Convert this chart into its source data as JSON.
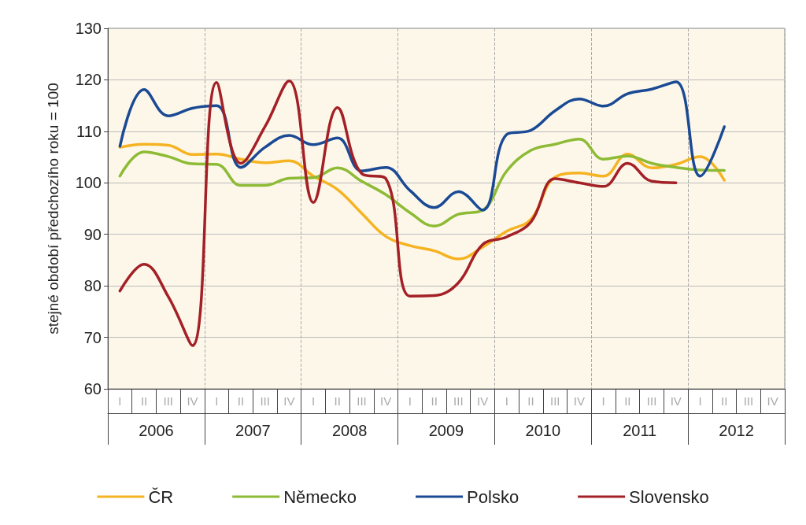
{
  "chart_data": {
    "type": "line",
    "ylabel": "stejné období předchozího roku = 100",
    "categories": [
      "I",
      "II",
      "III",
      "IV",
      "I",
      "II",
      "III",
      "IV",
      "I",
      "II",
      "III",
      "IV",
      "I",
      "II",
      "III",
      "IV",
      "I",
      "II",
      "III",
      "IV",
      "I",
      "II",
      "III",
      "IV",
      "I",
      "II",
      "III",
      "IV"
    ],
    "annotations": [
      "2006",
      "2007",
      "2008",
      "2009",
      "2010",
      "2011",
      "2012"
    ],
    "series": [
      {
        "name": "ČR",
        "color": "#f5b321",
        "values": [
          106.9,
          107.5,
          107.3,
          105.5,
          105.6,
          104.6,
          103.9,
          104.3,
          101.3,
          98.7,
          94.1,
          89.6,
          87.8,
          86.8,
          85.2,
          87.5,
          90.6,
          92.9,
          101.1,
          101.9,
          101.3,
          105.6,
          102.9,
          103.6,
          105.1,
          100.5,
          null,
          null
        ]
      },
      {
        "name": "Německo",
        "color": "#8dbb35",
        "values": [
          101.3,
          106,
          105.1,
          103.7,
          103.6,
          99.5,
          99.5,
          100.9,
          101,
          102.9,
          100.3,
          97.7,
          94.2,
          91.6,
          93.9,
          94.7,
          102.3,
          106.3,
          107.5,
          108.5,
          104.6,
          105.2,
          103.8,
          103,
          102.5,
          102.4,
          null,
          null
        ]
      },
      {
        "name": "Polsko",
        "color": "#1b4a94",
        "values": [
          107.1,
          118.1,
          113,
          114.5,
          115,
          103,
          106.9,
          109.2,
          107.4,
          108.7,
          102.3,
          103,
          98.5,
          95.2,
          98.3,
          94.7,
          109.4,
          110.2,
          114,
          116.3,
          114.9,
          117.3,
          118.2,
          119.6,
          101.3,
          110.9,
          null,
          null
        ]
      },
      {
        "name": "Slovensko",
        "color": "#a32126",
        "values": [
          79,
          84.2,
          77.9,
          68.4,
          119.5,
          103.8,
          110.9,
          119.8,
          96.2,
          114.6,
          101.8,
          100.8,
          78,
          78.1,
          80.6,
          88,
          89.5,
          92.4,
          100.8,
          100,
          99.3,
          103.8,
          100.3,
          100,
          null,
          null,
          null,
          null
        ]
      }
    ],
    "ylim": [
      60,
      130
    ],
    "yticks": [
      60,
      70,
      80,
      90,
      100,
      110,
      120,
      130
    ],
    "grid": "y",
    "legend": "bottom",
    "marker": "none",
    "line_style": "solid"
  }
}
